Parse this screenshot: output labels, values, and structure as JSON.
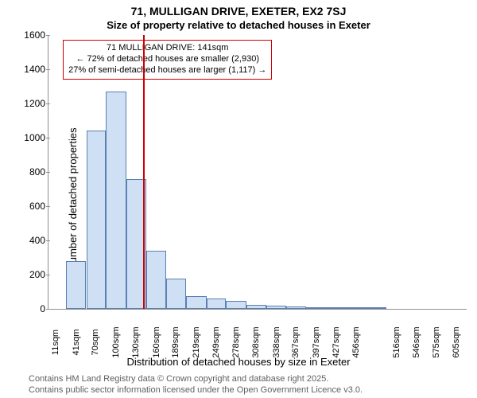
{
  "title_line1": "71, MULLIGAN DRIVE, EXETER, EX2 7SJ",
  "title_line2": "Size of property relative to detached houses in Exeter",
  "y_axis_label": "Number of detached properties",
  "x_axis_label": "Distribution of detached houses by size in Exeter",
  "footer_line1": "Contains HM Land Registry data © Crown copyright and database right 2025.",
  "footer_line2": "Contains public sector information licensed under the Open Government Licence v3.0.",
  "marker_line": {
    "value_sqm": 141,
    "color": "#d00000"
  },
  "annotation_box": {
    "line1": "71 MULLIGAN DRIVE: 141sqm",
    "line2": "← 72% of detached houses are smaller (2,930)",
    "line3": "27% of semi-detached houses are larger (1,117) →",
    "border_color": "#d00000",
    "background": "#ffffff"
  },
  "chart": {
    "type": "histogram",
    "background_color": "#ffffff",
    "bar_fill": "#cfe0f5",
    "bar_stroke": "#5a7fb2",
    "axis_color": "#909090",
    "ylim": [
      0,
      1600
    ],
    "ytick_step": 200,
    "yticks": [
      0,
      200,
      400,
      600,
      800,
      1000,
      1200,
      1400,
      1600
    ],
    "x_range_sqm": [
      0,
      620
    ],
    "x_tick_labels": [
      "11sqm",
      "41sqm",
      "70sqm",
      "100sqm",
      "130sqm",
      "160sqm",
      "189sqm",
      "219sqm",
      "249sqm",
      "278sqm",
      "308sqm",
      "338sqm",
      "367sqm",
      "397sqm",
      "427sqm",
      "456sqm",
      "516sqm",
      "546sqm",
      "575sqm",
      "605sqm"
    ],
    "x_tick_values": [
      11,
      41,
      70,
      100,
      130,
      160,
      189,
      219,
      249,
      278,
      308,
      338,
      367,
      397,
      427,
      456,
      516,
      546,
      575,
      605
    ],
    "bars": [
      {
        "x_start": 26,
        "x_end": 56,
        "value": 280
      },
      {
        "x_start": 56,
        "x_end": 85,
        "value": 1040
      },
      {
        "x_start": 85,
        "x_end": 115,
        "value": 1270
      },
      {
        "x_start": 115,
        "x_end": 145,
        "value": 760
      },
      {
        "x_start": 145,
        "x_end": 174,
        "value": 340
      },
      {
        "x_start": 174,
        "x_end": 204,
        "value": 175
      },
      {
        "x_start": 204,
        "x_end": 234,
        "value": 75
      },
      {
        "x_start": 234,
        "x_end": 263,
        "value": 60
      },
      {
        "x_start": 263,
        "x_end": 293,
        "value": 45
      },
      {
        "x_start": 293,
        "x_end": 323,
        "value": 25
      },
      {
        "x_start": 323,
        "x_end": 352,
        "value": 20
      },
      {
        "x_start": 352,
        "x_end": 382,
        "value": 12
      },
      {
        "x_start": 382,
        "x_end": 412,
        "value": 4
      },
      {
        "x_start": 412,
        "x_end": 442,
        "value": 3
      },
      {
        "x_start": 442,
        "x_end": 471,
        "value": 3
      },
      {
        "x_start": 471,
        "x_end": 501,
        "value": 2
      }
    ],
    "tick_fontsize": 11,
    "label_fontsize": 13,
    "title_fontsize": 14
  }
}
